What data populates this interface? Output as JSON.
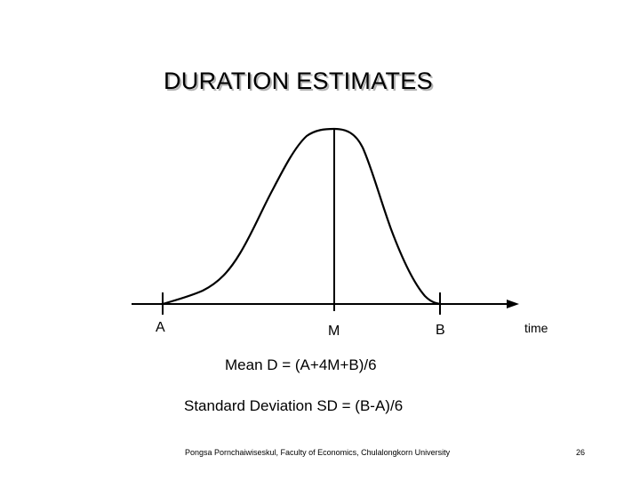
{
  "title": "DURATION ESTIMATES",
  "labels": {
    "a": "A",
    "m": "M",
    "b": "B",
    "axis": "time"
  },
  "formulas": {
    "mean": "Mean D = (A+4M+B)/6",
    "sd": "Standard Deviation SD = (B-A)/6"
  },
  "footer": {
    "credit": "Pongsa Pornchaiwiseskul, Faculty of Economics, Chulalongkorn University",
    "page_number": "26"
  }
}
